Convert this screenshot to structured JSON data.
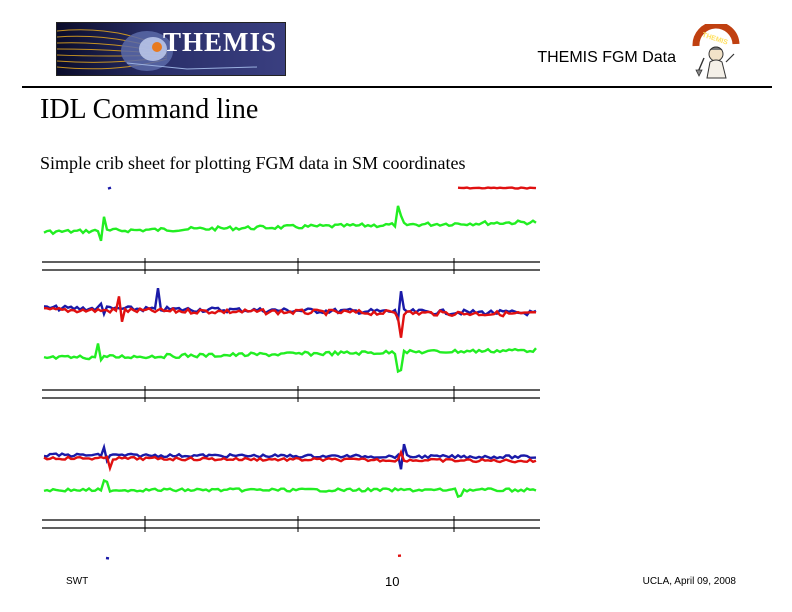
{
  "header": {
    "logo_text": "THEMIS",
    "title": "THEMIS FGM Data"
  },
  "slide": {
    "title": "IDL Command line",
    "subtitle": "Simple crib sheet for plotting FGM data in SM coordinates"
  },
  "footer": {
    "left": "SWT",
    "center": "10",
    "right": "UCLA, April 09, 2008"
  },
  "colors": {
    "bx": "#1a1aa8",
    "by": "#e01010",
    "bz": "#22ee22",
    "axis": "#000000"
  }
}
